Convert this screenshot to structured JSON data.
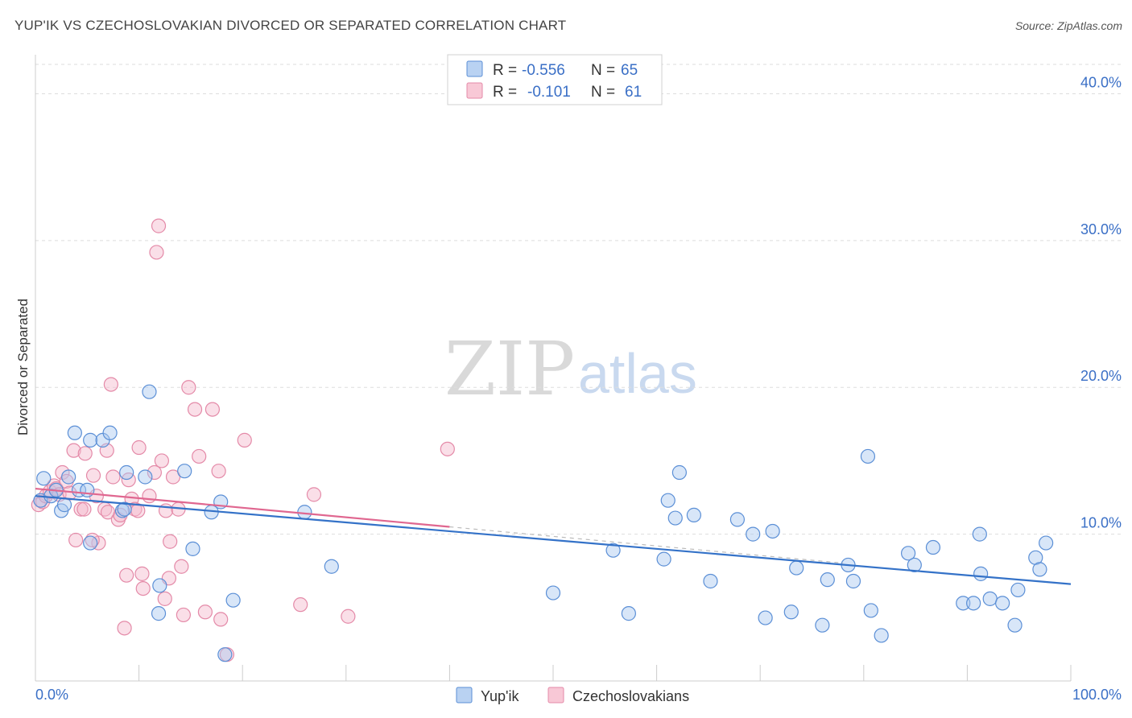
{
  "title": "YUP'IK VS CZECHOSLOVAKIAN DIVORCED OR SEPARATED CORRELATION CHART",
  "source": "Source: ZipAtlas.com",
  "watermark": {
    "zip": "ZIP",
    "atlas": "atlas"
  },
  "colors": {
    "blue_fill": "#a9c8ef",
    "blue_stroke": "#5b8fd6",
    "blue_line": "#3472c8",
    "pink_fill": "#f5b8cb",
    "pink_stroke": "#e48aa8",
    "pink_line": "#e06790",
    "axis_label": "#3a6fc6",
    "grid": "#dddddd"
  },
  "legend": {
    "entries": [
      {
        "r_label": "R =",
        "r_value": "-0.556",
        "n_label": "N =",
        "n_value": "65",
        "series": "blue"
      },
      {
        "r_label": "R =",
        "r_value": "-0.101",
        "n_label": "N =",
        "n_value": "61",
        "series": "pink"
      }
    ]
  },
  "chart_data": {
    "type": "scatter",
    "title": "YUP'IK VS CZECHOSLOVAKIAN DIVORCED OR SEPARATED CORRELATION CHART",
    "xlabel": "",
    "ylabel": "Divorced or Separated",
    "xlim": [
      0,
      100
    ],
    "ylim": [
      0,
      42
    ],
    "x_tick_labels": [
      "0.0%",
      "100.0%"
    ],
    "y_ticks": [
      10,
      20,
      30,
      40
    ],
    "y_tick_labels": [
      "10.0%",
      "20.0%",
      "30.0%",
      "40.0%"
    ],
    "grid": "horizontal dashed",
    "legend_placement": "top-center",
    "series": [
      {
        "name": "Yup'ik",
        "color": "blue",
        "trend": {
          "x0": 0,
          "y0": 12.6,
          "x1": 100,
          "y1": 6.6
        },
        "points": [
          [
            0.5,
            12.3
          ],
          [
            0.8,
            13.8
          ],
          [
            1.5,
            12.6
          ],
          [
            2,
            13.0
          ],
          [
            2.5,
            11.6
          ],
          [
            2.8,
            12.0
          ],
          [
            3.2,
            13.9
          ],
          [
            3.8,
            16.9
          ],
          [
            4.2,
            13.0
          ],
          [
            5,
            13.0
          ],
          [
            5.3,
            9.4
          ],
          [
            5.3,
            16.4
          ],
          [
            6.5,
            16.4
          ],
          [
            7.2,
            16.9
          ],
          [
            8.4,
            11.6
          ],
          [
            8.6,
            11.7
          ],
          [
            8.8,
            14.2
          ],
          [
            10.6,
            13.9
          ],
          [
            11.0,
            19.7
          ],
          [
            11.9,
            4.6
          ],
          [
            12.0,
            6.5
          ],
          [
            14.4,
            14.3
          ],
          [
            15.2,
            9.0
          ],
          [
            17.0,
            11.5
          ],
          [
            17.9,
            12.2
          ],
          [
            18.3,
            1.8
          ],
          [
            19.1,
            5.5
          ],
          [
            26.0,
            11.5
          ],
          [
            28.6,
            7.8
          ],
          [
            50.0,
            6.0
          ],
          [
            55.8,
            8.9
          ],
          [
            57.3,
            4.6
          ],
          [
            60.7,
            8.3
          ],
          [
            61.1,
            12.3
          ],
          [
            61.8,
            11.1
          ],
          [
            62.2,
            14.2
          ],
          [
            63.6,
            11.3
          ],
          [
            65.2,
            6.8
          ],
          [
            67.8,
            11.0
          ],
          [
            69.3,
            10.0
          ],
          [
            70.5,
            4.3
          ],
          [
            71.2,
            10.2
          ],
          [
            73.0,
            4.7
          ],
          [
            73.5,
            7.7
          ],
          [
            76.0,
            3.8
          ],
          [
            76.5,
            6.9
          ],
          [
            78.5,
            7.9
          ],
          [
            79.0,
            6.8
          ],
          [
            80.4,
            15.3
          ],
          [
            80.7,
            4.8
          ],
          [
            81.7,
            3.1
          ],
          [
            84.3,
            8.7
          ],
          [
            84.9,
            7.9
          ],
          [
            86.7,
            9.1
          ],
          [
            89.6,
            5.3
          ],
          [
            90.6,
            5.3
          ],
          [
            91.2,
            10.0
          ],
          [
            91.3,
            7.3
          ],
          [
            92.2,
            5.6
          ],
          [
            93.4,
            5.3
          ],
          [
            94.6,
            3.8
          ],
          [
            94.9,
            6.2
          ],
          [
            96.6,
            8.4
          ],
          [
            97.0,
            7.6
          ],
          [
            97.6,
            9.4
          ]
        ]
      },
      {
        "name": "Czechoslovakians",
        "color": "pink",
        "trend": {
          "x0": 0,
          "y0": 13.1,
          "x1": 40,
          "y1": 10.5
        },
        "points": [
          [
            0.3,
            12.0
          ],
          [
            0.7,
            12.2
          ],
          [
            1.0,
            12.6
          ],
          [
            1.4,
            12.9
          ],
          [
            1.8,
            13.3
          ],
          [
            2.0,
            13.1
          ],
          [
            2.3,
            12.7
          ],
          [
            2.6,
            14.2
          ],
          [
            3.0,
            13.6
          ],
          [
            3.3,
            12.8
          ],
          [
            3.7,
            15.7
          ],
          [
            3.9,
            9.6
          ],
          [
            4.4,
            11.7
          ],
          [
            4.7,
            11.7
          ],
          [
            4.8,
            15.5
          ],
          [
            5.6,
            14.0
          ],
          [
            5.9,
            12.6
          ],
          [
            6.1,
            9.4
          ],
          [
            6.7,
            11.7
          ],
          [
            6.9,
            15.7
          ],
          [
            7.0,
            11.5
          ],
          [
            7.3,
            20.2
          ],
          [
            7.5,
            13.9
          ],
          [
            8.0,
            11.0
          ],
          [
            8.2,
            11.3
          ],
          [
            8.6,
            3.6
          ],
          [
            9.0,
            13.7
          ],
          [
            9.3,
            12.4
          ],
          [
            9.6,
            11.7
          ],
          [
            9.9,
            11.6
          ],
          [
            10.0,
            15.9
          ],
          [
            10.3,
            7.3
          ],
          [
            10.4,
            6.3
          ],
          [
            11.0,
            12.6
          ],
          [
            11.5,
            14.2
          ],
          [
            11.7,
            29.2
          ],
          [
            11.9,
            31.0
          ],
          [
            12.2,
            15.0
          ],
          [
            12.5,
            5.6
          ],
          [
            12.6,
            11.6
          ],
          [
            12.9,
            7.0
          ],
          [
            13.0,
            9.5
          ],
          [
            13.3,
            13.9
          ],
          [
            13.8,
            11.7
          ],
          [
            14.1,
            7.8
          ],
          [
            14.3,
            4.5
          ],
          [
            14.8,
            20.0
          ],
          [
            15.4,
            18.5
          ],
          [
            15.8,
            15.3
          ],
          [
            16.4,
            4.7
          ],
          [
            17.1,
            18.5
          ],
          [
            17.7,
            14.3
          ],
          [
            17.9,
            4.2
          ],
          [
            18.5,
            1.8
          ],
          [
            20.2,
            16.4
          ],
          [
            25.6,
            5.2
          ],
          [
            26.9,
            12.7
          ],
          [
            30.2,
            4.4
          ],
          [
            39.8,
            15.8
          ],
          [
            5.5,
            9.6
          ],
          [
            8.8,
            7.2
          ]
        ]
      }
    ]
  },
  "bottom_legend": [
    {
      "label": "Yup'ik",
      "series": "blue"
    },
    {
      "label": "Czechoslovakians",
      "series": "pink"
    }
  ]
}
